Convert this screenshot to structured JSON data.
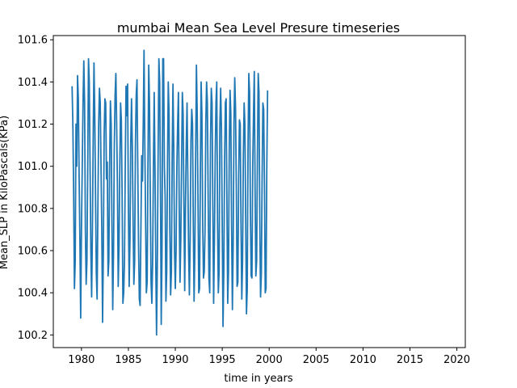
{
  "chart_data": {
    "type": "line",
    "title": "mumbai Mean Sea Level Presure timeseries",
    "xlabel": "time in years",
    "ylabel": "Mean_SLP in KiloPascals(KPa)",
    "xlim": [
      1977.0,
      2020.9
    ],
    "ylim": [
      100.14,
      101.62
    ],
    "xticks": [
      1980,
      1985,
      1990,
      1995,
      2000,
      2005,
      2010,
      2015,
      2020
    ],
    "yticks": [
      100.2,
      100.4,
      100.6,
      100.8,
      101.0,
      101.2,
      101.4,
      101.6
    ],
    "grid": false,
    "series": [
      {
        "name": "",
        "color": "#1f77b4",
        "start_year": 1979.0,
        "step": 0.08333,
        "values": [
          101.38,
          101.2,
          100.88,
          100.42,
          100.55,
          101.2,
          101.0,
          101.43,
          101.32,
          100.95,
          100.65,
          100.28,
          100.7,
          101.0,
          101.3,
          101.5,
          101.3,
          100.7,
          100.44,
          100.55,
          101.0,
          101.51,
          101.4,
          101.0,
          100.6,
          100.38,
          100.7,
          101.13,
          101.49,
          101.25,
          100.85,
          100.49,
          100.37,
          100.8,
          101.2,
          101.37,
          101.3,
          101.0,
          100.7,
          100.26,
          100.6,
          101.15,
          101.32,
          101.3,
          100.94,
          101.02,
          100.48,
          100.55,
          101.0,
          101.31,
          101.2,
          100.7,
          100.32,
          100.6,
          101.1,
          101.34,
          101.44,
          101.2,
          100.9,
          100.43,
          100.62,
          101.0,
          101.3,
          101.22,
          100.85,
          100.35,
          100.4,
          100.55,
          101.0,
          101.38,
          101.24,
          101.39,
          100.8,
          100.43,
          100.65,
          101.11,
          101.32,
          101.1,
          100.75,
          100.44,
          100.55,
          101.1,
          101.34,
          101.41,
          101.0,
          100.62,
          100.37,
          100.34,
          100.7,
          101.05,
          100.93,
          101.2,
          101.55,
          101.1,
          100.75,
          100.4,
          100.45,
          101.0,
          101.48,
          101.3,
          100.85,
          100.45,
          100.35,
          100.55,
          101.0,
          101.35,
          101.0,
          100.55,
          100.2,
          100.53,
          101.05,
          101.51,
          101.4,
          100.9,
          100.25,
          100.6,
          101.51,
          101.51,
          101.0,
          100.85,
          100.36,
          100.5,
          101.0,
          101.4,
          101.25,
          100.7,
          100.39,
          100.5,
          101.05,
          101.39,
          101.1,
          100.6,
          100.42,
          100.6,
          101.0,
          101.2,
          101.35,
          100.8,
          100.45,
          100.65,
          101.0,
          101.35,
          101.25,
          100.81,
          100.41,
          100.8,
          101.1,
          101.3,
          100.95,
          100.6,
          100.39,
          100.65,
          101.12,
          101.27,
          101.2,
          100.72,
          100.36,
          100.6,
          101.05,
          101.48,
          101.25,
          100.85,
          100.4,
          100.42,
          100.95,
          101.4,
          101.25,
          100.75,
          100.47,
          100.5,
          100.7,
          101.2,
          101.4,
          101.3,
          100.85,
          100.47,
          100.4,
          101.12,
          101.37,
          101.3,
          100.8,
          100.35,
          100.65,
          101.04,
          101.3,
          101.4,
          100.75,
          100.4,
          100.5,
          101.2,
          101.37,
          101.18,
          100.72,
          100.24,
          100.5,
          101.02,
          101.3,
          101.32,
          100.83,
          100.35,
          100.5,
          101.08,
          101.36,
          101.25,
          100.7,
          100.32,
          100.63,
          101.2,
          101.42,
          101.28,
          100.9,
          100.43,
          100.45,
          100.95,
          101.22,
          101.2,
          100.72,
          100.37,
          100.55,
          101.05,
          101.3,
          101.2,
          100.75,
          100.3,
          100.42,
          101.1,
          101.44,
          101.35,
          100.8,
          100.48,
          100.47,
          101.0,
          101.25,
          101.45,
          100.9,
          100.48,
          100.55,
          101.05,
          101.44,
          101.35,
          100.75,
          100.38,
          100.49,
          100.95,
          101.3,
          101.27,
          100.9,
          100.4,
          100.42,
          101.0,
          101.36
        ]
      }
    ]
  }
}
